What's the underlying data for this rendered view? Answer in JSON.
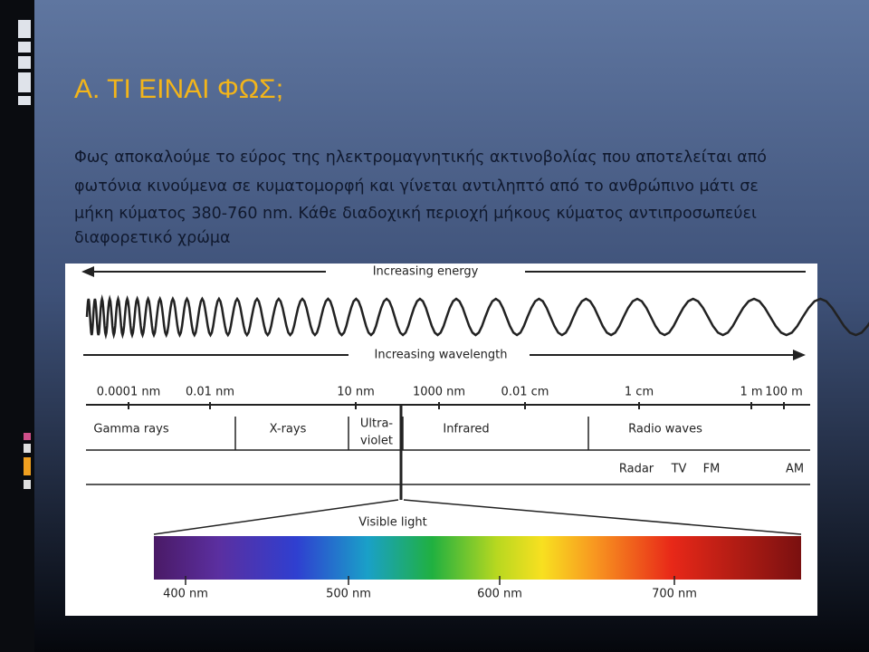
{
  "slide": {
    "title": "Α. ΤΙ ΕΙΝΑΙ ΦΩΣ;",
    "body": [
      "Φως αποκαλούμε το εύρος της ηλεκτρομαγνητικής ακτινοβολίας που αποτελείται από",
      "φωτόνια κινούμενα σε κυματομορφή και γίνεται αντιληπτό από το ανθρώπινο μάτι σε",
      "μήκη κύματος 380-760 nm. Κάθε διαδοχική περιοχή μήκους κύματος αντιπροσωπεύει",
      "διαφορετικό χρώμα"
    ]
  },
  "figure": {
    "energy_label": "Increasing energy",
    "wavelength_label": "Increasing wavelength",
    "scale": [
      "0.0001 nm",
      "0.01 nm",
      "10 nm",
      "1000 nm",
      "0.01 cm",
      "1 cm",
      "1 m",
      "100 m"
    ],
    "regions": [
      "Gamma rays",
      "X-rays",
      "Ultra-",
      "violet",
      "Infrared",
      "Radio waves"
    ],
    "bands": [
      "Radar",
      "TV",
      "FM",
      "AM"
    ],
    "visible_label": "Visible light",
    "visible_scale": [
      "400 nm",
      "500 nm",
      "600 nm",
      "700 nm"
    ]
  }
}
